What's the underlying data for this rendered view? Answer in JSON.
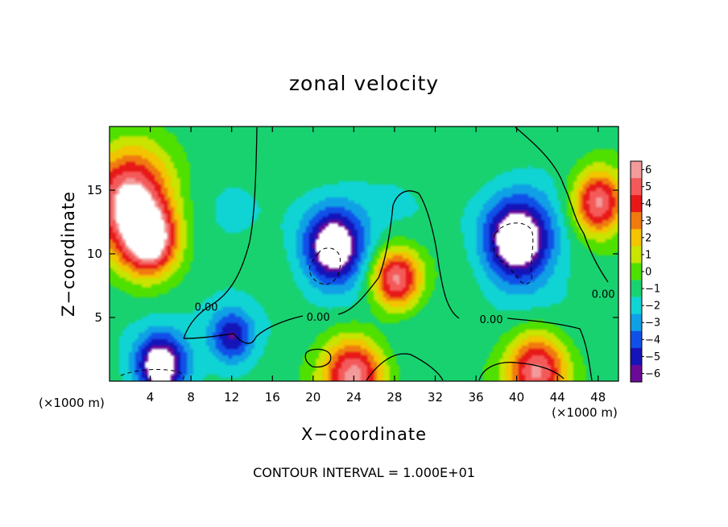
{
  "chart_data": {
    "type": "heatmap",
    "title": "zonal velocity",
    "xlabel": "X−coordinate",
    "ylabel": "Z−coordinate",
    "x_unit_left": "(×1000 m)",
    "x_unit_right": "(×1000 m)",
    "footer": "CONTOUR INTERVAL = 1.000E+01",
    "xlim": [
      0,
      50
    ],
    "ylim": [
      0,
      20
    ],
    "x_ticks": [
      4,
      8,
      12,
      16,
      20,
      24,
      28,
      32,
      36,
      40,
      44,
      48
    ],
    "x_tick_labels": [
      "4",
      "8",
      "12",
      "16",
      "20",
      "24",
      "28",
      "32",
      "36",
      "40",
      "44",
      "48"
    ],
    "y_ticks": [
      5,
      10,
      15
    ],
    "y_tick_labels": [
      "5",
      "10",
      "15"
    ],
    "colorbar": {
      "levels": [
        6,
        5,
        4,
        3,
        2,
        1,
        0,
        -1,
        -2,
        -3,
        -4,
        -5,
        -6
      ],
      "labels": [
        "6",
        "5",
        "4",
        "3",
        "2",
        "1",
        "0",
        "−1",
        "−2",
        "−3",
        "−4",
        "−5",
        "−6"
      ],
      "colors": [
        "#f39a9a",
        "#f45a5a",
        "#e81818",
        "#f07a10",
        "#f3c400",
        "#c8e400",
        "#50e000",
        "#18d270",
        "#10d4d4",
        "#10a0e6",
        "#1050e8",
        "#1414b8",
        "#6a0a96"
      ]
    },
    "contour_labels": [
      {
        "text": "0.00",
        "x": 9.5,
        "z": 5.8
      },
      {
        "text": "0.00",
        "x": 20.5,
        "z": 5.0
      },
      {
        "text": "0.00",
        "x": 37.5,
        "z": 4.8
      },
      {
        "text": "0.00",
        "x": 48.5,
        "z": 6.8
      }
    ],
    "features": [
      {
        "x": 22,
        "z": 10.5,
        "r": 3.0,
        "v": -7
      },
      {
        "x": 40,
        "z": 11.0,
        "r": 3.3,
        "v": -7
      },
      {
        "x": 28.2,
        "z": 8.0,
        "r": 2.4,
        "v": 7
      },
      {
        "x": 2,
        "z": 14,
        "r": 4.0,
        "v": 8
      },
      {
        "x": 4,
        "z": 11,
        "r": 2.5,
        "v": 7
      },
      {
        "x": 48,
        "z": 14,
        "r": 2.5,
        "v": 7
      },
      {
        "x": 24,
        "z": 0.5,
        "r": 3.0,
        "v": 7
      },
      {
        "x": 42,
        "z": 0.8,
        "r": 3.0,
        "v": 7
      },
      {
        "x": 5,
        "z": 1.2,
        "r": 2.5,
        "v": -7
      },
      {
        "x": 12,
        "z": 3.5,
        "r": 2.0,
        "v": -4
      }
    ]
  }
}
